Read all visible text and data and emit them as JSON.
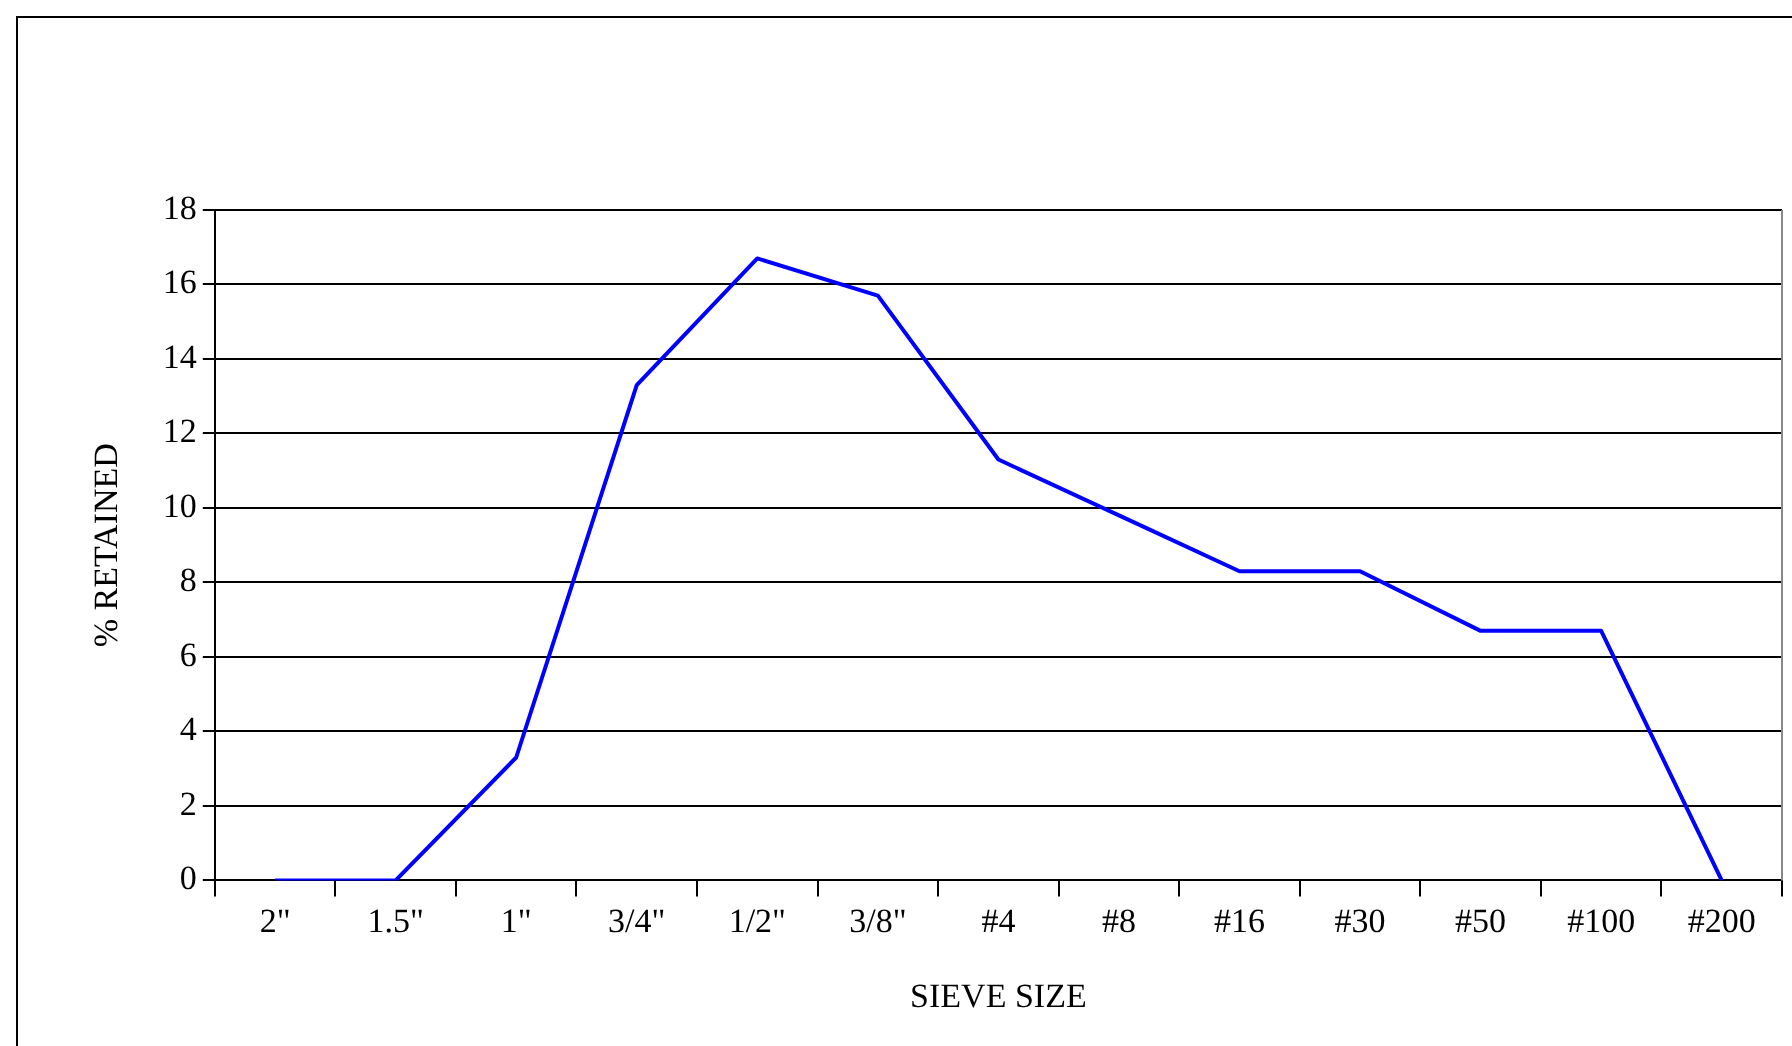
{
  "chart_data": {
    "type": "line",
    "xlabel": "SIEVE SIZE",
    "ylabel": "% RETAINED",
    "categories": [
      "2\"",
      "1.5\"",
      "1\"",
      "3/4\"",
      "1/2\"",
      "3/8\"",
      "#4",
      "#8",
      "#16",
      "#30",
      "#50",
      "#100",
      "#200"
    ],
    "series": [
      {
        "color": "#0000ff",
        "values": [
          0,
          0,
          3.3,
          13.3,
          16.7,
          15.7,
          11.3,
          9.8,
          8.3,
          8.3,
          6.7,
          6.7,
          0
        ]
      }
    ],
    "ylim": [
      0,
      18
    ],
    "yticks": [
      0,
      2,
      4,
      6,
      8,
      10,
      12,
      14,
      16,
      18
    ],
    "grid": "y",
    "legend": false,
    "marker": "none",
    "line_style": "solid"
  }
}
